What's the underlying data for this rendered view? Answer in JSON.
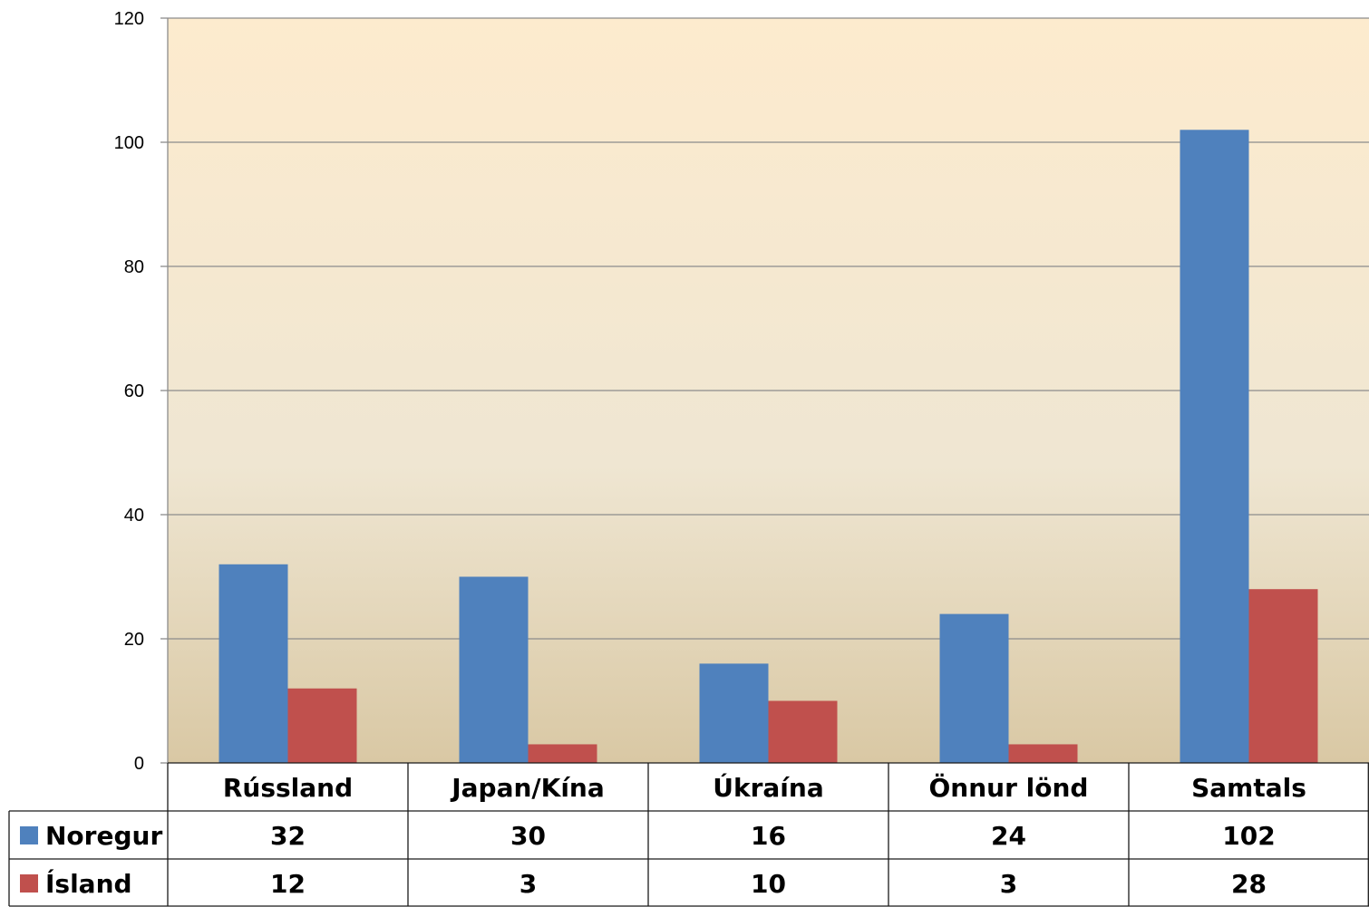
{
  "chart_data": {
    "type": "bar",
    "title": "",
    "xlabel": "",
    "ylabel": "",
    "ylim": [
      0,
      120
    ],
    "yticks": [
      0,
      20,
      40,
      60,
      80,
      100,
      120
    ],
    "grid": true,
    "legend": "data-table",
    "categories": [
      "Rússland",
      "Japan/Kína",
      "Úkraína",
      "Önnur lönd",
      "Samtals"
    ],
    "series": [
      {
        "name": "Noregur",
        "values": [
          32,
          30,
          16,
          24,
          102
        ],
        "color": "#4f81bd"
      },
      {
        "name": "Ísland",
        "values": [
          12,
          3,
          10,
          3,
          28
        ],
        "color": "#c0504d"
      }
    ]
  }
}
